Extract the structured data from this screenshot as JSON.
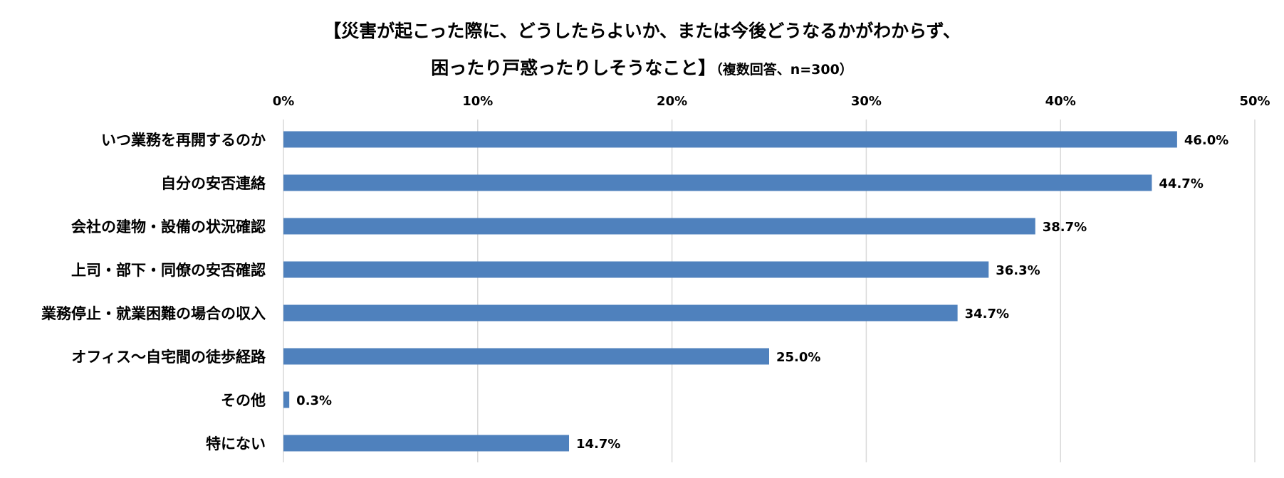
{
  "chart_data": {
    "type": "bar",
    "orientation": "horizontal",
    "title": "【災害が起こった際に、どうしたらよいか、または今後どうなるかがわからず、",
    "title_line2": "困ったり戸惑ったりしそうなこと】",
    "title_note": "（複数回答、n=300）",
    "categories": [
      "いつ業務を再開するのか",
      "自分の安否連絡",
      "会社の建物・設備の状況確認",
      "上司・部下・同僚の安否確認",
      "業務停止・就業困難の場合の収入",
      "オフィス～自宅間の徒歩経路",
      "その他",
      "特にない"
    ],
    "values": [
      46.0,
      44.7,
      38.7,
      36.3,
      34.7,
      25.0,
      0.3,
      14.7
    ],
    "value_labels": [
      "46.0%",
      "44.7%",
      "38.7%",
      "36.3%",
      "34.7%",
      "25.0%",
      "0.3%",
      "14.7%"
    ],
    "x_ticks": [
      0,
      10,
      20,
      30,
      40,
      50
    ],
    "x_tick_labels": [
      "0%",
      "10%",
      "20%",
      "30%",
      "40%",
      "50%"
    ],
    "xlim": [
      0,
      50
    ],
    "xaxis_position": "top",
    "grid": true,
    "bar_color": "#4F81BD",
    "grid_color": "#D9D9D9"
  }
}
